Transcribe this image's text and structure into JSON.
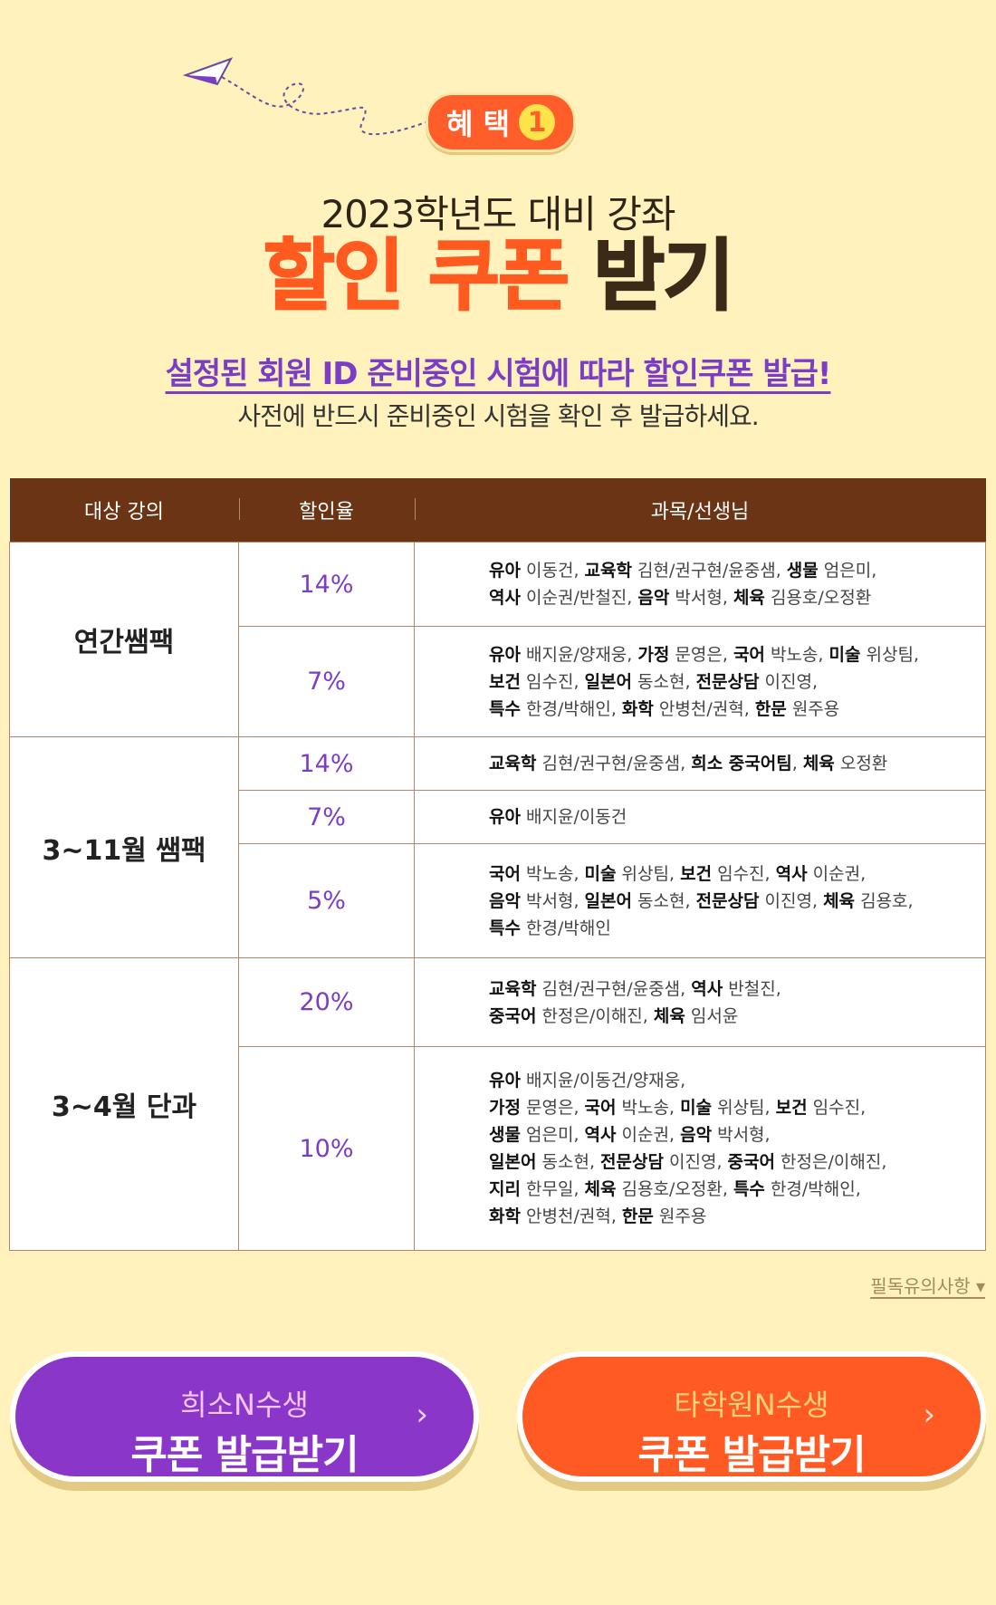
{
  "hero": {
    "badge_text": "혜 택",
    "badge_num": "1",
    "subtitle": "2023학년도 대비 강좌",
    "title_orange": "할인 쿠폰",
    "title_brown": "받기",
    "notice_main": "설정된 회원 ID 준비중인 시험에 따라 할인쿠폰 발급!",
    "notice_sub": "사전에 반드시 준비중인 시험을 확인 후 발급하세요."
  },
  "table": {
    "headers": [
      "대상 강의",
      "할인율",
      "과목/선생님"
    ],
    "groups": [
      {
        "course": "연간쌤팩",
        "rows": [
          {
            "rate": "14%",
            "lines": [
              [
                [
                  "유아",
                  "이동건"
                ],
                [
                  "교육학",
                  "김현/권구현/윤중샘"
                ],
                [
                  "생물",
                  "엄은미"
                ]
              ],
              [
                [
                  "역사",
                  "이순권/반철진"
                ],
                [
                  "음악",
                  "박서형"
                ],
                [
                  "체육",
                  "김용호/오정환"
                ]
              ]
            ]
          },
          {
            "rate": "7%",
            "lines": [
              [
                [
                  "유아",
                  "배지윤/양재웅"
                ],
                [
                  "가정",
                  "문영은"
                ],
                [
                  "국어",
                  "박노송"
                ],
                [
                  "미술",
                  "위상팀"
                ]
              ],
              [
                [
                  "보건",
                  "임수진"
                ],
                [
                  "일본어",
                  "동소현"
                ],
                [
                  "전문상담",
                  "이진영"
                ]
              ],
              [
                [
                  "특수",
                  "한경/박해인"
                ],
                [
                  "화학",
                  "안병천/권혁"
                ],
                [
                  "한문",
                  "원주용"
                ]
              ]
            ]
          }
        ]
      },
      {
        "course": "3~11월 쌤팩",
        "rows": [
          {
            "rate": "14%",
            "lines": [
              [
                [
                  "교육학",
                  "김현/권구현/윤중샘"
                ],
                [
                  "희소 중국어팀",
                  ""
                ],
                [
                  "체육",
                  "오정환"
                ]
              ]
            ]
          },
          {
            "rate": "7%",
            "lines": [
              [
                [
                  "유아",
                  "배지윤/이동건"
                ]
              ]
            ]
          },
          {
            "rate": "5%",
            "lines": [
              [
                [
                  "국어",
                  "박노송"
                ],
                [
                  "미술",
                  "위상팀"
                ],
                [
                  "보건",
                  "임수진"
                ],
                [
                  "역사",
                  "이순권"
                ]
              ],
              [
                [
                  "음악",
                  "박서형"
                ],
                [
                  "일본어",
                  "동소현"
                ],
                [
                  "전문상담",
                  "이진영"
                ],
                [
                  "체육",
                  "김용호"
                ]
              ],
              [
                [
                  "특수",
                  "한경/박해인"
                ]
              ]
            ]
          }
        ]
      },
      {
        "course": "3~4월 단과",
        "rows": [
          {
            "rate": "20%",
            "lines": [
              [
                [
                  "교육학",
                  "김현/권구현/윤중샘"
                ],
                [
                  "역사",
                  "반철진"
                ]
              ],
              [
                [
                  "중국어",
                  "한정은/이해진"
                ],
                [
                  "체육",
                  "임서윤"
                ]
              ]
            ]
          },
          {
            "rate": "10%",
            "lines": [
              [
                [
                  "유아",
                  "배지윤/이동건/양재웅"
                ]
              ],
              [
                [
                  "가정",
                  "문영은"
                ],
                [
                  "국어",
                  "박노송"
                ],
                [
                  "미술",
                  "위상팀"
                ],
                [
                  "보건",
                  "임수진"
                ]
              ],
              [
                [
                  "생물",
                  "엄은미"
                ],
                [
                  "역사",
                  "이순권"
                ],
                [
                  "음악",
                  "박서형"
                ]
              ],
              [
                [
                  "일본어",
                  "동소현"
                ],
                [
                  "전문상담",
                  "이진영"
                ],
                [
                  "중국어",
                  "한정은/이해진"
                ]
              ],
              [
                [
                  "지리",
                  "한무일"
                ],
                [
                  "체육",
                  "김용호/오정환"
                ],
                [
                  "특수",
                  "한경/박해인"
                ]
              ],
              [
                [
                  "화학",
                  "안병천/권혁"
                ],
                [
                  "한문",
                  "원주용"
                ]
              ]
            ]
          }
        ]
      }
    ]
  },
  "must_read": "필독유의사항 ▾",
  "buttons": {
    "left": {
      "line1": "희소N수생",
      "line2": "쿠폰 발급받기",
      "color": "#8a36c9"
    },
    "right": {
      "line1": "타학원N수생",
      "line2": "쿠폰 발급받기",
      "color": "#ff5a24"
    }
  }
}
